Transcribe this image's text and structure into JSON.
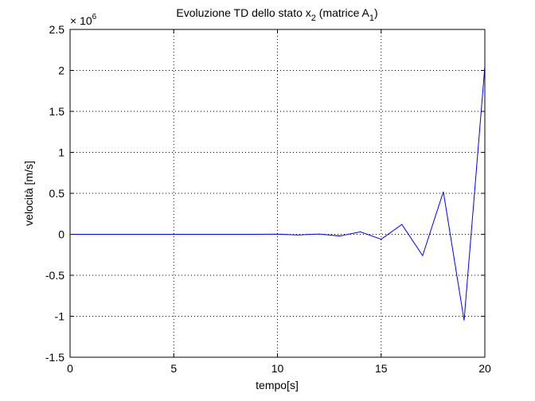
{
  "chart_data": {
    "type": "line",
    "title": {
      "prefix": "Evoluzione TD dello stato x",
      "sub1": "2",
      "middle": " (matrice A",
      "sub2": "1",
      "suffix": ")"
    },
    "xlabel": "tempo[s]",
    "ylabel": "velocità [m/s]",
    "xlim": [
      0,
      20
    ],
    "ylim": [
      -1.5,
      2.5
    ],
    "y_scale_factor": {
      "base": "× 10",
      "exponent": "6"
    },
    "x_ticks": [
      0,
      5,
      10,
      15,
      20
    ],
    "x_tick_labels": [
      "0",
      "5",
      "10",
      "15",
      "20"
    ],
    "y_ticks": [
      -1.5,
      -1,
      -0.5,
      0,
      0.5,
      1,
      1.5,
      2,
      2.5
    ],
    "y_tick_labels": [
      "-1.5",
      "-1",
      "-0.5",
      "0",
      "0.5",
      "1",
      "1.5",
      "2",
      "2.5"
    ],
    "grid": true,
    "series": [
      {
        "color": "#0000ff",
        "x": [
          0,
          1,
          2,
          3,
          4,
          5,
          6,
          7,
          8,
          9,
          10,
          11,
          12,
          13,
          14,
          15,
          16,
          17,
          18,
          19,
          20
        ],
        "y": [
          0,
          0,
          0,
          0,
          0,
          0,
          0,
          0,
          0,
          0,
          0.002,
          -0.008,
          0.004,
          -0.02,
          0.03,
          -0.06,
          0.12,
          -0.26,
          0.52,
          -1.05,
          2.05
        ]
      }
    ]
  }
}
